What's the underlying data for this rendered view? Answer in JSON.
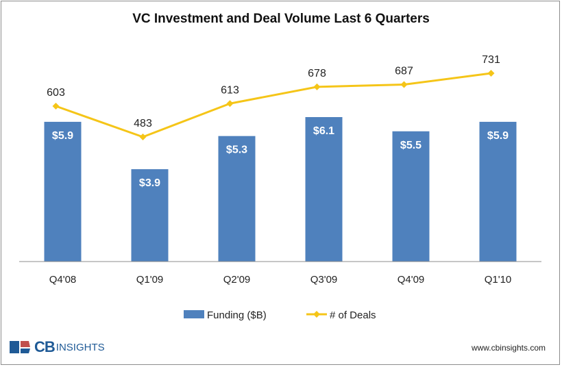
{
  "chart_data": {
    "type": "bar+line",
    "title": "VC Investment and Deal Volume Last 6 Quarters",
    "categories": [
      "Q4'08",
      "Q1'09",
      "Q2'09",
      "Q3'09",
      "Q4'09",
      "Q1'10"
    ],
    "series": [
      {
        "name": "Funding ($B)",
        "type": "bar",
        "values": [
          5.9,
          3.9,
          5.3,
          6.1,
          5.5,
          5.9
        ],
        "labels": [
          "$5.9",
          "$3.9",
          "$5.3",
          "$6.1",
          "$5.5",
          "$5.9"
        ],
        "color": "#4f81bd"
      },
      {
        "name": "# of Deals",
        "type": "line",
        "values": [
          603,
          483,
          613,
          678,
          687,
          731
        ],
        "labels": [
          "603",
          "483",
          "613",
          "678",
          "687",
          "731"
        ],
        "color": "#f5c518"
      }
    ],
    "bar_ylim": [
      0,
      6.1
    ],
    "line_ylim": [
      0,
      731
    ],
    "legend_position": "bottom",
    "grid": false
  },
  "footer": {
    "brand_cb": "CB",
    "brand_insights": "INSIGHTS",
    "url": "www.cbinsights.com",
    "logo_colors": [
      "#1f5a96",
      "#c0504d"
    ]
  }
}
